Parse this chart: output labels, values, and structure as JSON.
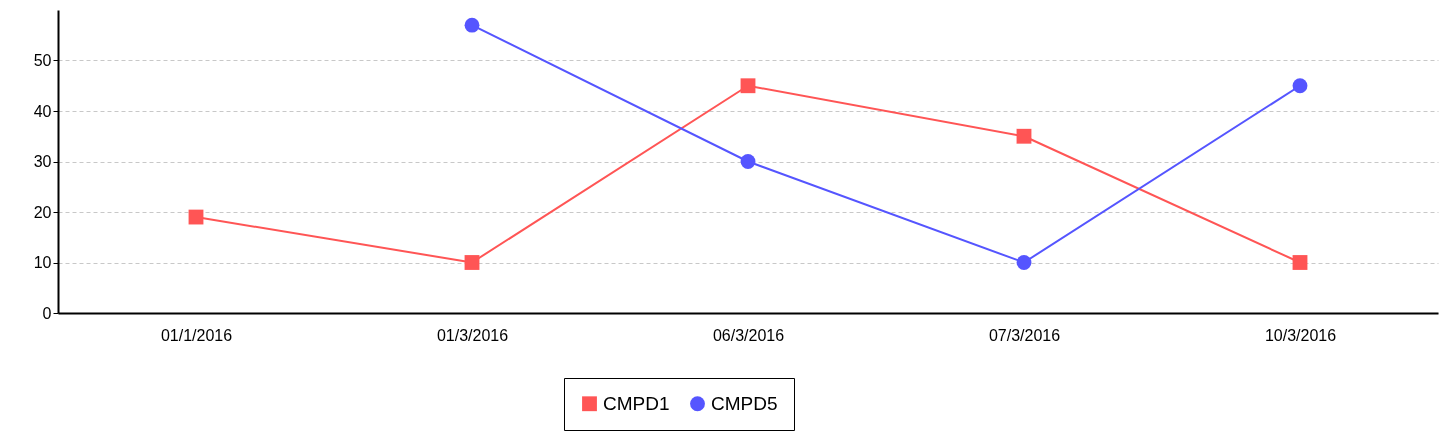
{
  "chart_data": {
    "type": "line",
    "categories": [
      "01/1/2016",
      "01/3/2016",
      "06/3/2016",
      "07/3/2016",
      "10/3/2016"
    ],
    "series": [
      {
        "name": "CMPD1",
        "color": "#ff5555",
        "marker": "square",
        "values": [
          19,
          10,
          45,
          35,
          10
        ]
      },
      {
        "name": "CMPD5",
        "color": "#5555ff",
        "marker": "circle",
        "values": [
          null,
          57,
          30,
          10,
          45
        ]
      }
    ],
    "ylim": [
      0,
      60
    ],
    "yticks": [
      0,
      10,
      20,
      30,
      40,
      50
    ],
    "grid": "y",
    "legend": "bottom",
    "line_style": "solid"
  }
}
